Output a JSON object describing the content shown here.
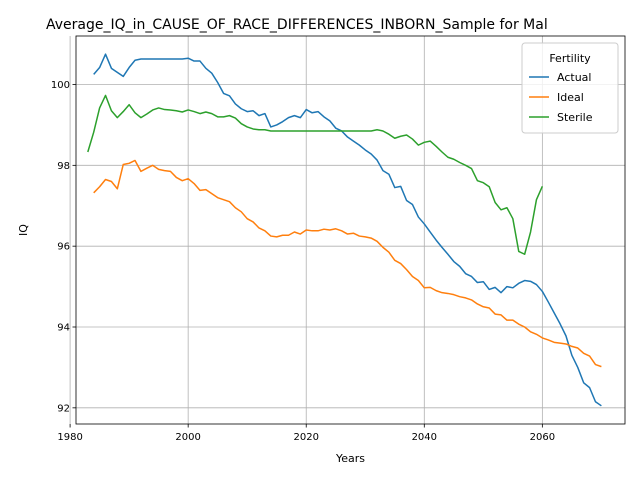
{
  "chart_data": {
    "type": "line",
    "title": "Average_IQ_in_CAUSE_OF_RACE_DIFFERENCES_INBORN_Sample for Mal",
    "xlabel": "Years",
    "ylabel": "IQ",
    "xlim": [
      1981,
      2074
    ],
    "ylim": [
      91.6,
      101.2
    ],
    "xticks": [
      1980,
      2000,
      2020,
      2040,
      2060
    ],
    "yticks": [
      92,
      94,
      96,
      98,
      100
    ],
    "grid": true,
    "legend": {
      "title": "Fertility",
      "placement": "top-right"
    },
    "series": [
      {
        "name": "Actual",
        "color": "#1f77b4",
        "x": [
          1984,
          1985,
          1986,
          1987,
          1988,
          1989,
          1990,
          1991,
          1992,
          1993,
          1994,
          1995,
          1996,
          1997,
          1998,
          1999,
          2000,
          2001,
          2002,
          2003,
          2004,
          2005,
          2006,
          2007,
          2008,
          2009,
          2010,
          2011,
          2012,
          2013,
          2014,
          2015,
          2016,
          2017,
          2018,
          2019,
          2020,
          2021,
          2022,
          2023,
          2024,
          2025,
          2026,
          2027,
          2028,
          2029,
          2030,
          2031,
          2032,
          2033,
          2034,
          2035,
          2036,
          2037,
          2038,
          2039,
          2040,
          2041,
          2042,
          2043,
          2044,
          2045,
          2046,
          2047,
          2048,
          2049,
          2050,
          2051,
          2052,
          2053,
          2054,
          2055,
          2056,
          2057,
          2058,
          2059,
          2060,
          2061,
          2062,
          2063,
          2064,
          2065,
          2066,
          2067,
          2068,
          2069,
          2070
        ],
        "values": [
          100.25,
          100.42,
          100.75,
          100.4,
          100.3,
          100.2,
          100.42,
          100.6,
          100.63,
          100.63,
          100.63,
          100.63,
          100.63,
          100.63,
          100.63,
          100.63,
          100.65,
          100.58,
          100.58,
          100.4,
          100.28,
          100.05,
          99.78,
          99.72,
          99.52,
          99.4,
          99.33,
          99.35,
          99.23,
          99.28,
          98.95,
          99.0,
          99.08,
          99.18,
          99.23,
          99.18,
          99.38,
          99.3,
          99.33,
          99.2,
          99.1,
          98.92,
          98.85,
          98.7,
          98.6,
          98.5,
          98.38,
          98.28,
          98.13,
          97.87,
          97.78,
          97.45,
          97.48,
          97.13,
          97.03,
          96.72,
          96.55,
          96.35,
          96.15,
          95.97,
          95.8,
          95.62,
          95.5,
          95.32,
          95.25,
          95.1,
          95.12,
          94.93,
          94.98,
          94.85,
          95.0,
          94.97,
          95.08,
          95.15,
          95.13,
          95.05,
          94.88,
          94.62,
          94.35,
          94.08,
          93.78,
          93.3,
          93.0,
          92.62,
          92.5,
          92.15,
          92.05
        ]
      },
      {
        "name": "Ideal",
        "color": "#ff7f0e",
        "x": [
          1984,
          1985,
          1986,
          1987,
          1988,
          1989,
          1990,
          1991,
          1992,
          1993,
          1994,
          1995,
          1996,
          1997,
          1998,
          1999,
          2000,
          2001,
          2002,
          2003,
          2004,
          2005,
          2006,
          2007,
          2008,
          2009,
          2010,
          2011,
          2012,
          2013,
          2014,
          2015,
          2016,
          2017,
          2018,
          2019,
          2020,
          2021,
          2022,
          2023,
          2024,
          2025,
          2026,
          2027,
          2028,
          2029,
          2030,
          2031,
          2032,
          2033,
          2034,
          2035,
          2036,
          2037,
          2038,
          2039,
          2040,
          2041,
          2042,
          2043,
          2044,
          2045,
          2046,
          2047,
          2048,
          2049,
          2050,
          2051,
          2052,
          2053,
          2054,
          2055,
          2056,
          2057,
          2058,
          2059,
          2060,
          2061,
          2062,
          2063,
          2064,
          2065,
          2066,
          2067,
          2068,
          2069,
          2070
        ],
        "values": [
          97.32,
          97.47,
          97.65,
          97.6,
          97.42,
          98.02,
          98.05,
          98.12,
          97.85,
          97.93,
          98.0,
          97.9,
          97.87,
          97.85,
          97.7,
          97.62,
          97.67,
          97.55,
          97.38,
          97.4,
          97.3,
          97.2,
          97.15,
          97.1,
          96.95,
          96.85,
          96.68,
          96.6,
          96.45,
          96.38,
          96.25,
          96.23,
          96.27,
          96.27,
          96.35,
          96.3,
          96.4,
          96.38,
          96.38,
          96.42,
          96.4,
          96.43,
          96.38,
          96.3,
          96.32,
          96.25,
          96.23,
          96.2,
          96.12,
          95.97,
          95.85,
          95.65,
          95.57,
          95.42,
          95.25,
          95.15,
          94.97,
          94.98,
          94.9,
          94.85,
          94.83,
          94.8,
          94.75,
          94.72,
          94.67,
          94.57,
          94.5,
          94.47,
          94.32,
          94.3,
          94.17,
          94.17,
          94.07,
          94.0,
          93.88,
          93.82,
          93.73,
          93.68,
          93.62,
          93.6,
          93.58,
          93.52,
          93.48,
          93.35,
          93.28,
          93.07,
          93.02
        ]
      },
      {
        "name": "Sterile",
        "color": "#2ca02c",
        "x": [
          1983,
          1984,
          1985,
          1986,
          1987,
          1988,
          1989,
          1990,
          1991,
          1992,
          1993,
          1994,
          1995,
          1996,
          1997,
          1998,
          1999,
          2000,
          2001,
          2002,
          2003,
          2004,
          2005,
          2006,
          2007,
          2008,
          2009,
          2010,
          2011,
          2012,
          2013,
          2014,
          2015,
          2016,
          2017,
          2018,
          2019,
          2020,
          2021,
          2022,
          2023,
          2024,
          2025,
          2026,
          2027,
          2028,
          2029,
          2030,
          2031,
          2032,
          2033,
          2034,
          2035,
          2036,
          2037,
          2038,
          2039,
          2040,
          2041,
          2042,
          2043,
          2044,
          2045,
          2046,
          2047,
          2048,
          2049,
          2050,
          2051,
          2052,
          2053,
          2054,
          2055,
          2056,
          2057,
          2058,
          2059,
          2060
        ],
        "values": [
          98.33,
          98.82,
          99.42,
          99.73,
          99.35,
          99.18,
          99.33,
          99.5,
          99.3,
          99.18,
          99.27,
          99.37,
          99.42,
          99.38,
          99.37,
          99.35,
          99.32,
          99.37,
          99.33,
          99.28,
          99.32,
          99.28,
          99.2,
          99.2,
          99.23,
          99.17,
          99.03,
          98.95,
          98.9,
          98.88,
          98.88,
          98.85,
          98.85,
          98.85,
          98.85,
          98.85,
          98.85,
          98.85,
          98.85,
          98.85,
          98.85,
          98.85,
          98.85,
          98.85,
          98.85,
          98.85,
          98.85,
          98.85,
          98.85,
          98.88,
          98.85,
          98.77,
          98.67,
          98.72,
          98.75,
          98.65,
          98.5,
          98.57,
          98.6,
          98.47,
          98.33,
          98.2,
          98.15,
          98.07,
          98.0,
          97.92,
          97.62,
          97.57,
          97.47,
          97.08,
          96.9,
          96.95,
          96.68,
          95.87,
          95.8,
          96.35,
          97.15,
          97.48
        ]
      }
    ]
  }
}
